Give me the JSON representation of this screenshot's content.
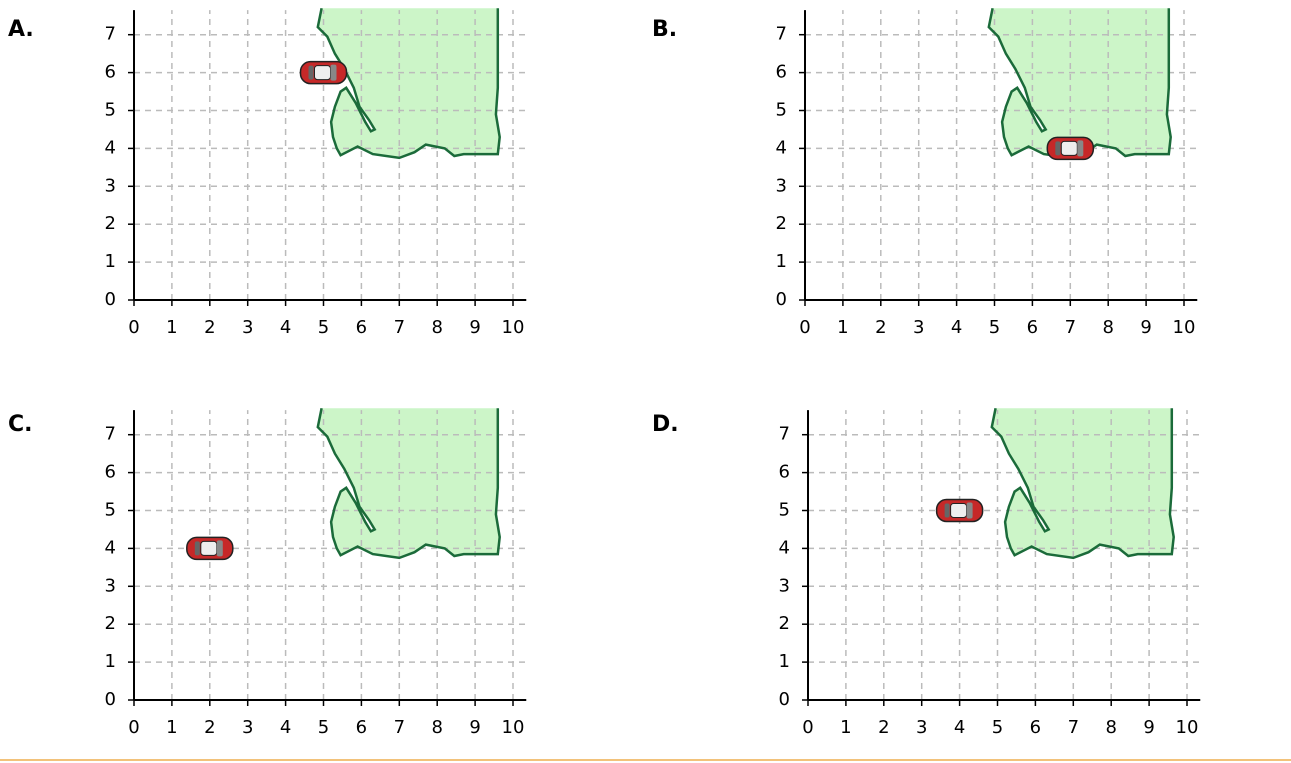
{
  "chart_data": [
    {
      "type": "scatter",
      "title": "A.",
      "x": [
        5
      ],
      "values": [
        6
      ],
      "color": "#c62828",
      "xlim": [
        0,
        10.35
      ],
      "ylim": [
        0,
        7.65
      ],
      "xticks": [
        0,
        1,
        2,
        3,
        4,
        5,
        6,
        7,
        8,
        9,
        10
      ],
      "yticks": [
        0,
        1,
        2,
        3,
        4,
        5,
        6,
        7
      ],
      "grid": true
    },
    {
      "type": "scatter",
      "title": "B.",
      "x": [
        7
      ],
      "values": [
        4
      ],
      "color": "#c62828",
      "xlim": [
        0,
        10.35
      ],
      "ylim": [
        0,
        7.65
      ],
      "xticks": [
        0,
        1,
        2,
        3,
        4,
        5,
        6,
        7,
        8,
        9,
        10
      ],
      "yticks": [
        0,
        1,
        2,
        3,
        4,
        5,
        6,
        7
      ],
      "grid": true
    },
    {
      "type": "scatter",
      "title": "C.",
      "x": [
        2
      ],
      "values": [
        4
      ],
      "color": "#c62828",
      "xlim": [
        0,
        10.35
      ],
      "ylim": [
        0,
        7.65
      ],
      "xticks": [
        0,
        1,
        2,
        3,
        4,
        5,
        6,
        7,
        8,
        9,
        10
      ],
      "yticks": [
        0,
        1,
        2,
        3,
        4,
        5,
        6,
        7
      ],
      "grid": true
    },
    {
      "type": "scatter",
      "title": "D.",
      "x": [
        4
      ],
      "values": [
        5
      ],
      "color": "#c62828",
      "xlim": [
        0,
        10.35
      ],
      "ylim": [
        0,
        7.65
      ],
      "xticks": [
        0,
        1,
        2,
        3,
        4,
        5,
        6,
        7,
        8,
        9,
        10
      ],
      "yticks": [
        0,
        1,
        2,
        3,
        4,
        5,
        6,
        7
      ],
      "grid": true
    }
  ]
}
